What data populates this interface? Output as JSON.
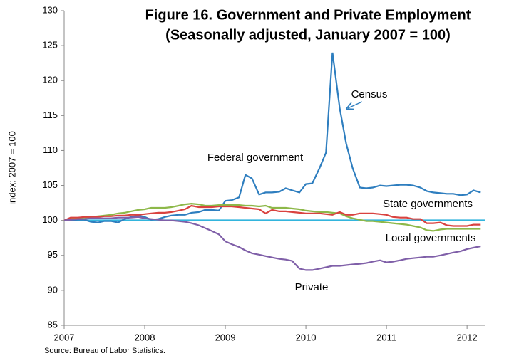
{
  "chart_data": {
    "type": "line",
    "title": [
      "Figure 16. Government and Private Employment",
      "(Seasonally adjusted, January 2007 = 100)"
    ],
    "y_label": "index: 2007 = 100",
    "source": "Source: Bureau of Labor Statistics.",
    "annotations": [
      "Census"
    ],
    "x": [
      2007,
      2007.08,
      2007.17,
      2007.25,
      2007.33,
      2007.42,
      2007.5,
      2007.58,
      2007.67,
      2007.75,
      2007.83,
      2007.92,
      2008,
      2008.08,
      2008.17,
      2008.25,
      2008.33,
      2008.42,
      2008.5,
      2008.58,
      2008.67,
      2008.75,
      2008.83,
      2008.92,
      2009,
      2009.08,
      2009.17,
      2009.25,
      2009.33,
      2009.42,
      2009.5,
      2009.58,
      2009.67,
      2009.75,
      2009.83,
      2009.92,
      2010,
      2010.08,
      2010.17,
      2010.25,
      2010.33,
      2010.42,
      2010.5,
      2010.58,
      2010.67,
      2010.75,
      2010.83,
      2010.92,
      2011,
      2011.08,
      2011.17,
      2011.25,
      2011.33,
      2011.42,
      2011.5,
      2011.58,
      2011.67,
      2011.75,
      2011.83,
      2011.92,
      2012,
      2012.08,
      2012.17
    ],
    "series": [
      {
        "name": "Federal government",
        "color": "#2e7ebf",
        "values": [
          100,
          100,
          100.1,
          100.1,
          99.8,
          99.7,
          99.9,
          99.9,
          99.7,
          100.2,
          100.5,
          100.7,
          100.5,
          100.1,
          100.2,
          100.5,
          100.7,
          100.8,
          100.8,
          101.1,
          101.2,
          101.5,
          101.5,
          101.4,
          102.8,
          102.9,
          103.3,
          106.5,
          106,
          103.7,
          104,
          104,
          104.1,
          104.6,
          104.3,
          104,
          105.2,
          105.3,
          107.5,
          109.7,
          124,
          116,
          111,
          107.5,
          104.7,
          104.6,
          104.7,
          105,
          104.9,
          105,
          105.1,
          105.1,
          105,
          104.7,
          104.2,
          104,
          103.9,
          103.8,
          103.8,
          103.6,
          103.7,
          104.3,
          104
        ]
      },
      {
        "name": "State governments",
        "color": "#8db849",
        "values": [
          100,
          100.2,
          100.3,
          100.4,
          100.5,
          100.6,
          100.7,
          100.8,
          101,
          101.1,
          101.3,
          101.5,
          101.6,
          101.8,
          101.8,
          101.8,
          101.9,
          102.1,
          102.3,
          102.4,
          102.3,
          102.1,
          102.1,
          102.2,
          102.2,
          102.2,
          102.2,
          102.1,
          102.1,
          102,
          102.1,
          101.8,
          101.8,
          101.8,
          101.7,
          101.6,
          101.4,
          101.3,
          101.2,
          101.2,
          101.1,
          101,
          100.6,
          100.3,
          100.1,
          99.9,
          99.9,
          99.8,
          99.7,
          99.6,
          99.5,
          99.4,
          99.2,
          99,
          98.6,
          98.5,
          98.7,
          98.8,
          98.8,
          98.8,
          98.8,
          98.8,
          98.8
        ]
      },
      {
        "name": "Local governments",
        "color": "#d9423f",
        "values": [
          100,
          100.4,
          100.4,
          100.5,
          100.5,
          100.5,
          100.6,
          100.6,
          100.7,
          100.7,
          100.8,
          100.8,
          100.9,
          101,
          101.1,
          101.1,
          101.2,
          101.4,
          101.6,
          102.1,
          101.9,
          101.9,
          101.9,
          102,
          102,
          102,
          101.9,
          101.8,
          101.7,
          101.6,
          101,
          101.5,
          101.3,
          101.3,
          101.2,
          101.1,
          101,
          101,
          101,
          100.9,
          100.8,
          101.2,
          100.8,
          100.8,
          101,
          101,
          101,
          100.9,
          100.8,
          100.5,
          100.4,
          100.4,
          100.2,
          100.2,
          99.6,
          99.6,
          99.7,
          99.3,
          99.2,
          99.2,
          99.2,
          99.4,
          99.4
        ]
      },
      {
        "name": "Private",
        "color": "#7f5fa8",
        "values": [
          100,
          100.1,
          100.2,
          100.2,
          100.3,
          100.3,
          100.3,
          100.3,
          100.4,
          100.4,
          100.4,
          100.5,
          100.3,
          100.2,
          100.1,
          100,
          100,
          99.9,
          99.8,
          99.6,
          99.3,
          98.9,
          98.5,
          98,
          97,
          96.6,
          96.2,
          95.7,
          95.3,
          95.1,
          94.9,
          94.7,
          94.5,
          94.4,
          94.2,
          93.1,
          92.9,
          92.9,
          93.1,
          93.3,
          93.5,
          93.5,
          93.6,
          93.7,
          93.8,
          93.9,
          94.1,
          94.3,
          94,
          94.1,
          94.3,
          94.5,
          94.6,
          94.7,
          94.8,
          94.8,
          95,
          95.2,
          95.4,
          95.6,
          95.9,
          96.1,
          96.3
        ]
      }
    ],
    "reference_line": {
      "value": 100,
      "color": "#33b5dd"
    },
    "xlim": [
      2007,
      2012.22
    ],
    "xticks": [
      2007,
      2008,
      2009,
      2010,
      2011,
      2012
    ],
    "ylim": [
      85,
      130
    ],
    "yticks": [
      85,
      90,
      95,
      100,
      105,
      110,
      115,
      120,
      125,
      130
    ]
  }
}
